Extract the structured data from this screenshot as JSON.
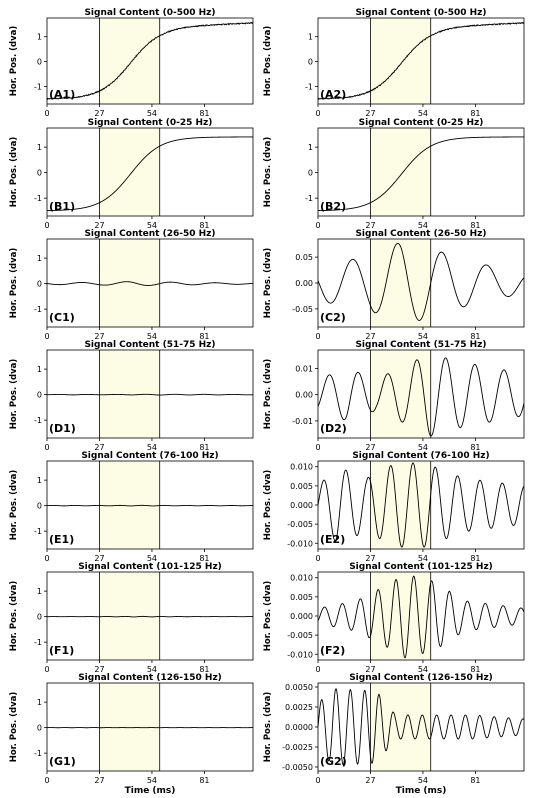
{
  "figure": {
    "xlabel": "Time (ms)",
    "ylabel": "Hor. Pos. (dva)"
  },
  "chart_data": [
    {
      "type": "line",
      "panel": "A1",
      "title": "Signal Content (0-500 Hz)",
      "xlim": [
        0,
        106
      ],
      "ylim": [
        -1.7,
        1.75
      ],
      "xticks": [
        "0",
        "27",
        "54",
        "81"
      ],
      "yticks": [
        "1",
        "0",
        "-1"
      ],
      "ytick_values": [
        1,
        0,
        -1
      ],
      "highlight": [
        27,
        58
      ],
      "wave": {
        "kind": "sigmoid",
        "start": -1.5,
        "end": 1.4,
        "mid": 43,
        "k": 0.13,
        "tail": 0.15,
        "noise": 0.04
      }
    },
    {
      "type": "line",
      "panel": "A2",
      "title": "Signal Content (0-500 Hz)",
      "xlim": [
        0,
        106
      ],
      "ylim": [
        -1.7,
        1.75
      ],
      "xticks": [
        "0",
        "27",
        "54",
        "81"
      ],
      "yticks": [
        "1",
        "0",
        "-1"
      ],
      "ytick_values": [
        1,
        0,
        -1
      ],
      "highlight": [
        27,
        58
      ],
      "wave": {
        "kind": "sigmoid",
        "start": -1.5,
        "end": 1.4,
        "mid": 43,
        "k": 0.13,
        "tail": 0.15,
        "noise": 0.04
      }
    },
    {
      "type": "line",
      "panel": "B1",
      "title": "Signal Content (0-25 Hz)",
      "xlim": [
        0,
        106
      ],
      "ylim": [
        -1.7,
        1.75
      ],
      "xticks": [
        "0",
        "27",
        "54",
        "81"
      ],
      "yticks": [
        "1",
        "0",
        "-1"
      ],
      "ytick_values": [
        1,
        0,
        -1
      ],
      "highlight": [
        27,
        58
      ],
      "wave": {
        "kind": "sigmoid",
        "start": -1.5,
        "end": 1.4,
        "mid": 43,
        "k": 0.13,
        "tail": 0,
        "noise": 0
      }
    },
    {
      "type": "line",
      "panel": "B2",
      "title": "Signal Content (0-25 Hz)",
      "xlim": [
        0,
        106
      ],
      "ylim": [
        -1.7,
        1.75
      ],
      "xticks": [
        "0",
        "27",
        "54",
        "81"
      ],
      "yticks": [
        "1",
        "0",
        "-1"
      ],
      "ytick_values": [
        1,
        0,
        -1
      ],
      "highlight": [
        27,
        58
      ],
      "wave": {
        "kind": "sigmoid",
        "start": -1.5,
        "end": 1.4,
        "mid": 43,
        "k": 0.13,
        "tail": 0,
        "noise": 0
      }
    },
    {
      "type": "line",
      "panel": "C1",
      "title": "Signal Content (26-50 Hz)",
      "xlim": [
        0,
        106
      ],
      "ylim": [
        -1.7,
        1.75
      ],
      "xticks": [
        "0",
        "27",
        "54",
        "81"
      ],
      "yticks": [
        "1",
        "0",
        "-1"
      ],
      "ytick_values": [
        1,
        0,
        -1
      ],
      "highlight": [
        27,
        58
      ],
      "wave": {
        "kind": "osc",
        "period": 23,
        "phase": 12,
        "amp": [
          [
            0,
            0.035
          ],
          [
            25,
            0.05
          ],
          [
            43,
            0.08
          ],
          [
            55,
            0.07
          ],
          [
            80,
            0.04
          ],
          [
            106,
            0.02
          ]
        ]
      }
    },
    {
      "type": "line",
      "panel": "C2",
      "title": "Signal Content (26-50 Hz)",
      "xlim": [
        0,
        106
      ],
      "ylim": [
        -0.085,
        0.085
      ],
      "xticks": [
        "0",
        "27",
        "54",
        "81"
      ],
      "yticks": [
        "0.05",
        "0.00",
        "-0.05"
      ],
      "ytick_values": [
        0.05,
        0,
        -0.05
      ],
      "highlight": [
        27,
        58
      ],
      "wave": {
        "kind": "osc",
        "period": 23,
        "phase": 12,
        "amp": [
          [
            0,
            0.035
          ],
          [
            25,
            0.05
          ],
          [
            43,
            0.08
          ],
          [
            55,
            0.07
          ],
          [
            80,
            0.04
          ],
          [
            106,
            0.02
          ]
        ]
      }
    },
    {
      "type": "line",
      "panel": "D1",
      "title": "Signal Content (51-75 Hz)",
      "xlim": [
        0,
        106
      ],
      "ylim": [
        -1.7,
        1.75
      ],
      "xticks": [
        "0",
        "27",
        "54",
        "81"
      ],
      "yticks": [
        "1",
        "0",
        "-1"
      ],
      "ytick_values": [
        1,
        0,
        -1
      ],
      "highlight": [
        27,
        58
      ],
      "wave": {
        "kind": "osc",
        "period": 15,
        "phase": 2,
        "amp": [
          [
            0,
            0.006
          ],
          [
            15,
            0.01
          ],
          [
            30,
            0.006
          ],
          [
            48,
            0.012
          ],
          [
            57,
            0.016
          ],
          [
            70,
            0.013
          ],
          [
            106,
            0.008
          ]
        ]
      }
    },
    {
      "type": "line",
      "panel": "D2",
      "title": "Signal Content (51-75 Hz)",
      "xlim": [
        0,
        106
      ],
      "ylim": [
        -0.0165,
        0.017
      ],
      "xticks": [
        "0",
        "27",
        "54",
        "81"
      ],
      "yticks": [
        "0.01",
        "0.00",
        "-0.01"
      ],
      "ytick_values": [
        0.01,
        0,
        -0.01
      ],
      "highlight": [
        27,
        58
      ],
      "wave": {
        "kind": "osc",
        "period": 15,
        "phase": 2,
        "amp": [
          [
            0,
            0.006
          ],
          [
            15,
            0.01
          ],
          [
            30,
            0.006
          ],
          [
            48,
            0.012
          ],
          [
            57,
            0.016
          ],
          [
            70,
            0.013
          ],
          [
            106,
            0.008
          ]
        ]
      }
    },
    {
      "type": "line",
      "panel": "E1",
      "title": "Signal Content (76-100 Hz)",
      "xlim": [
        0,
        106
      ],
      "ylim": [
        -1.7,
        1.75
      ],
      "xticks": [
        "0",
        "27",
        "54",
        "81"
      ],
      "yticks": [
        "1",
        "0",
        "-1"
      ],
      "ytick_values": [
        1,
        0,
        -1
      ],
      "highlight": [
        27,
        58
      ],
      "wave": {
        "kind": "osc",
        "period": 11.5,
        "phase": 0,
        "amp": [
          [
            0,
            0.005
          ],
          [
            10,
            0.01
          ],
          [
            25,
            0.007
          ],
          [
            40,
            0.011
          ],
          [
            55,
            0.011
          ],
          [
            75,
            0.007
          ],
          [
            106,
            0.005
          ]
        ]
      }
    },
    {
      "type": "line",
      "panel": "E2",
      "title": "Signal Content (76-100 Hz)",
      "xlim": [
        0,
        106
      ],
      "ylim": [
        -0.0115,
        0.0115
      ],
      "xticks": [
        "0",
        "27",
        "54",
        "81"
      ],
      "yticks": [
        "0.010",
        "0.005",
        "0.000",
        "-0.005",
        "-0.010"
      ],
      "ytick_values": [
        0.01,
        0.005,
        0,
        -0.005,
        -0.01
      ],
      "highlight": [
        27,
        58
      ],
      "wave": {
        "kind": "osc",
        "period": 11.5,
        "phase": 0,
        "amp": [
          [
            0,
            0.005
          ],
          [
            10,
            0.01
          ],
          [
            25,
            0.007
          ],
          [
            40,
            0.011
          ],
          [
            55,
            0.011
          ],
          [
            75,
            0.007
          ],
          [
            106,
            0.005
          ]
        ]
      }
    },
    {
      "type": "line",
      "panel": "F1",
      "title": "Signal Content (101-125 Hz)",
      "xlim": [
        0,
        106
      ],
      "ylim": [
        -1.7,
        1.75
      ],
      "xticks": [
        "0",
        "27",
        "54",
        "81"
      ],
      "yticks": [
        "1",
        "0",
        "-1"
      ],
      "ytick_values": [
        1,
        0,
        -1
      ],
      "highlight": [
        27,
        58
      ],
      "wave": {
        "kind": "osc",
        "period": 9.2,
        "phase": 1,
        "amp": [
          [
            0,
            0.002
          ],
          [
            20,
            0.004
          ],
          [
            35,
            0.008
          ],
          [
            45,
            0.011
          ],
          [
            60,
            0.009
          ],
          [
            75,
            0.004
          ],
          [
            106,
            0.002
          ]
        ]
      }
    },
    {
      "type": "line",
      "panel": "F2",
      "title": "Signal Content (101-125 Hz)",
      "xlim": [
        0,
        106
      ],
      "ylim": [
        -0.0115,
        0.0115
      ],
      "xticks": [
        "0",
        "27",
        "54",
        "81"
      ],
      "yticks": [
        "0.010",
        "0.005",
        "0.000",
        "-0.005",
        "-0.010"
      ],
      "ytick_values": [
        0.01,
        0.005,
        0,
        -0.005,
        -0.01
      ],
      "highlight": [
        27,
        58
      ],
      "wave": {
        "kind": "osc",
        "period": 9.2,
        "phase": 1,
        "amp": [
          [
            0,
            0.002
          ],
          [
            20,
            0.004
          ],
          [
            35,
            0.008
          ],
          [
            45,
            0.011
          ],
          [
            60,
            0.009
          ],
          [
            75,
            0.004
          ],
          [
            106,
            0.002
          ]
        ]
      }
    },
    {
      "type": "line",
      "panel": "G1",
      "title": "Signal Content (126-150 Hz)",
      "xlim": [
        0,
        106
      ],
      "ylim": [
        -1.7,
        1.75
      ],
      "xticks": [
        "0",
        "27",
        "54",
        "81"
      ],
      "yticks": [
        "1",
        "0",
        "-1"
      ],
      "ytick_values": [
        1,
        0,
        -1
      ],
      "highlight": [
        27,
        58
      ],
      "wave": {
        "kind": "osc",
        "period": 7.4,
        "phase": 0,
        "amp": [
          [
            0,
            0.003
          ],
          [
            8,
            0.0048
          ],
          [
            30,
            0.0045
          ],
          [
            40,
            0.0015
          ],
          [
            60,
            0.0015
          ],
          [
            80,
            0.0015
          ],
          [
            106,
            0.001
          ]
        ]
      }
    },
    {
      "type": "line",
      "panel": "G2",
      "title": "Signal Content (126-150 Hz)",
      "xlim": [
        0,
        106
      ],
      "ylim": [
        -0.0055,
        0.0055
      ],
      "xticks": [
        "0",
        "27",
        "54",
        "81"
      ],
      "yticks": [
        "0.0050",
        "0.0025",
        "0.0000",
        "-0.0025",
        "-0.0050"
      ],
      "ytick_values": [
        0.005,
        0.0025,
        0,
        -0.0025,
        -0.005
      ],
      "highlight": [
        27,
        58
      ],
      "wave": {
        "kind": "osc",
        "period": 7.4,
        "phase": 0,
        "amp": [
          [
            0,
            0.003
          ],
          [
            8,
            0.0048
          ],
          [
            30,
            0.0045
          ],
          [
            40,
            0.0015
          ],
          [
            60,
            0.0015
          ],
          [
            80,
            0.0015
          ],
          [
            106,
            0.001
          ]
        ]
      }
    }
  ]
}
